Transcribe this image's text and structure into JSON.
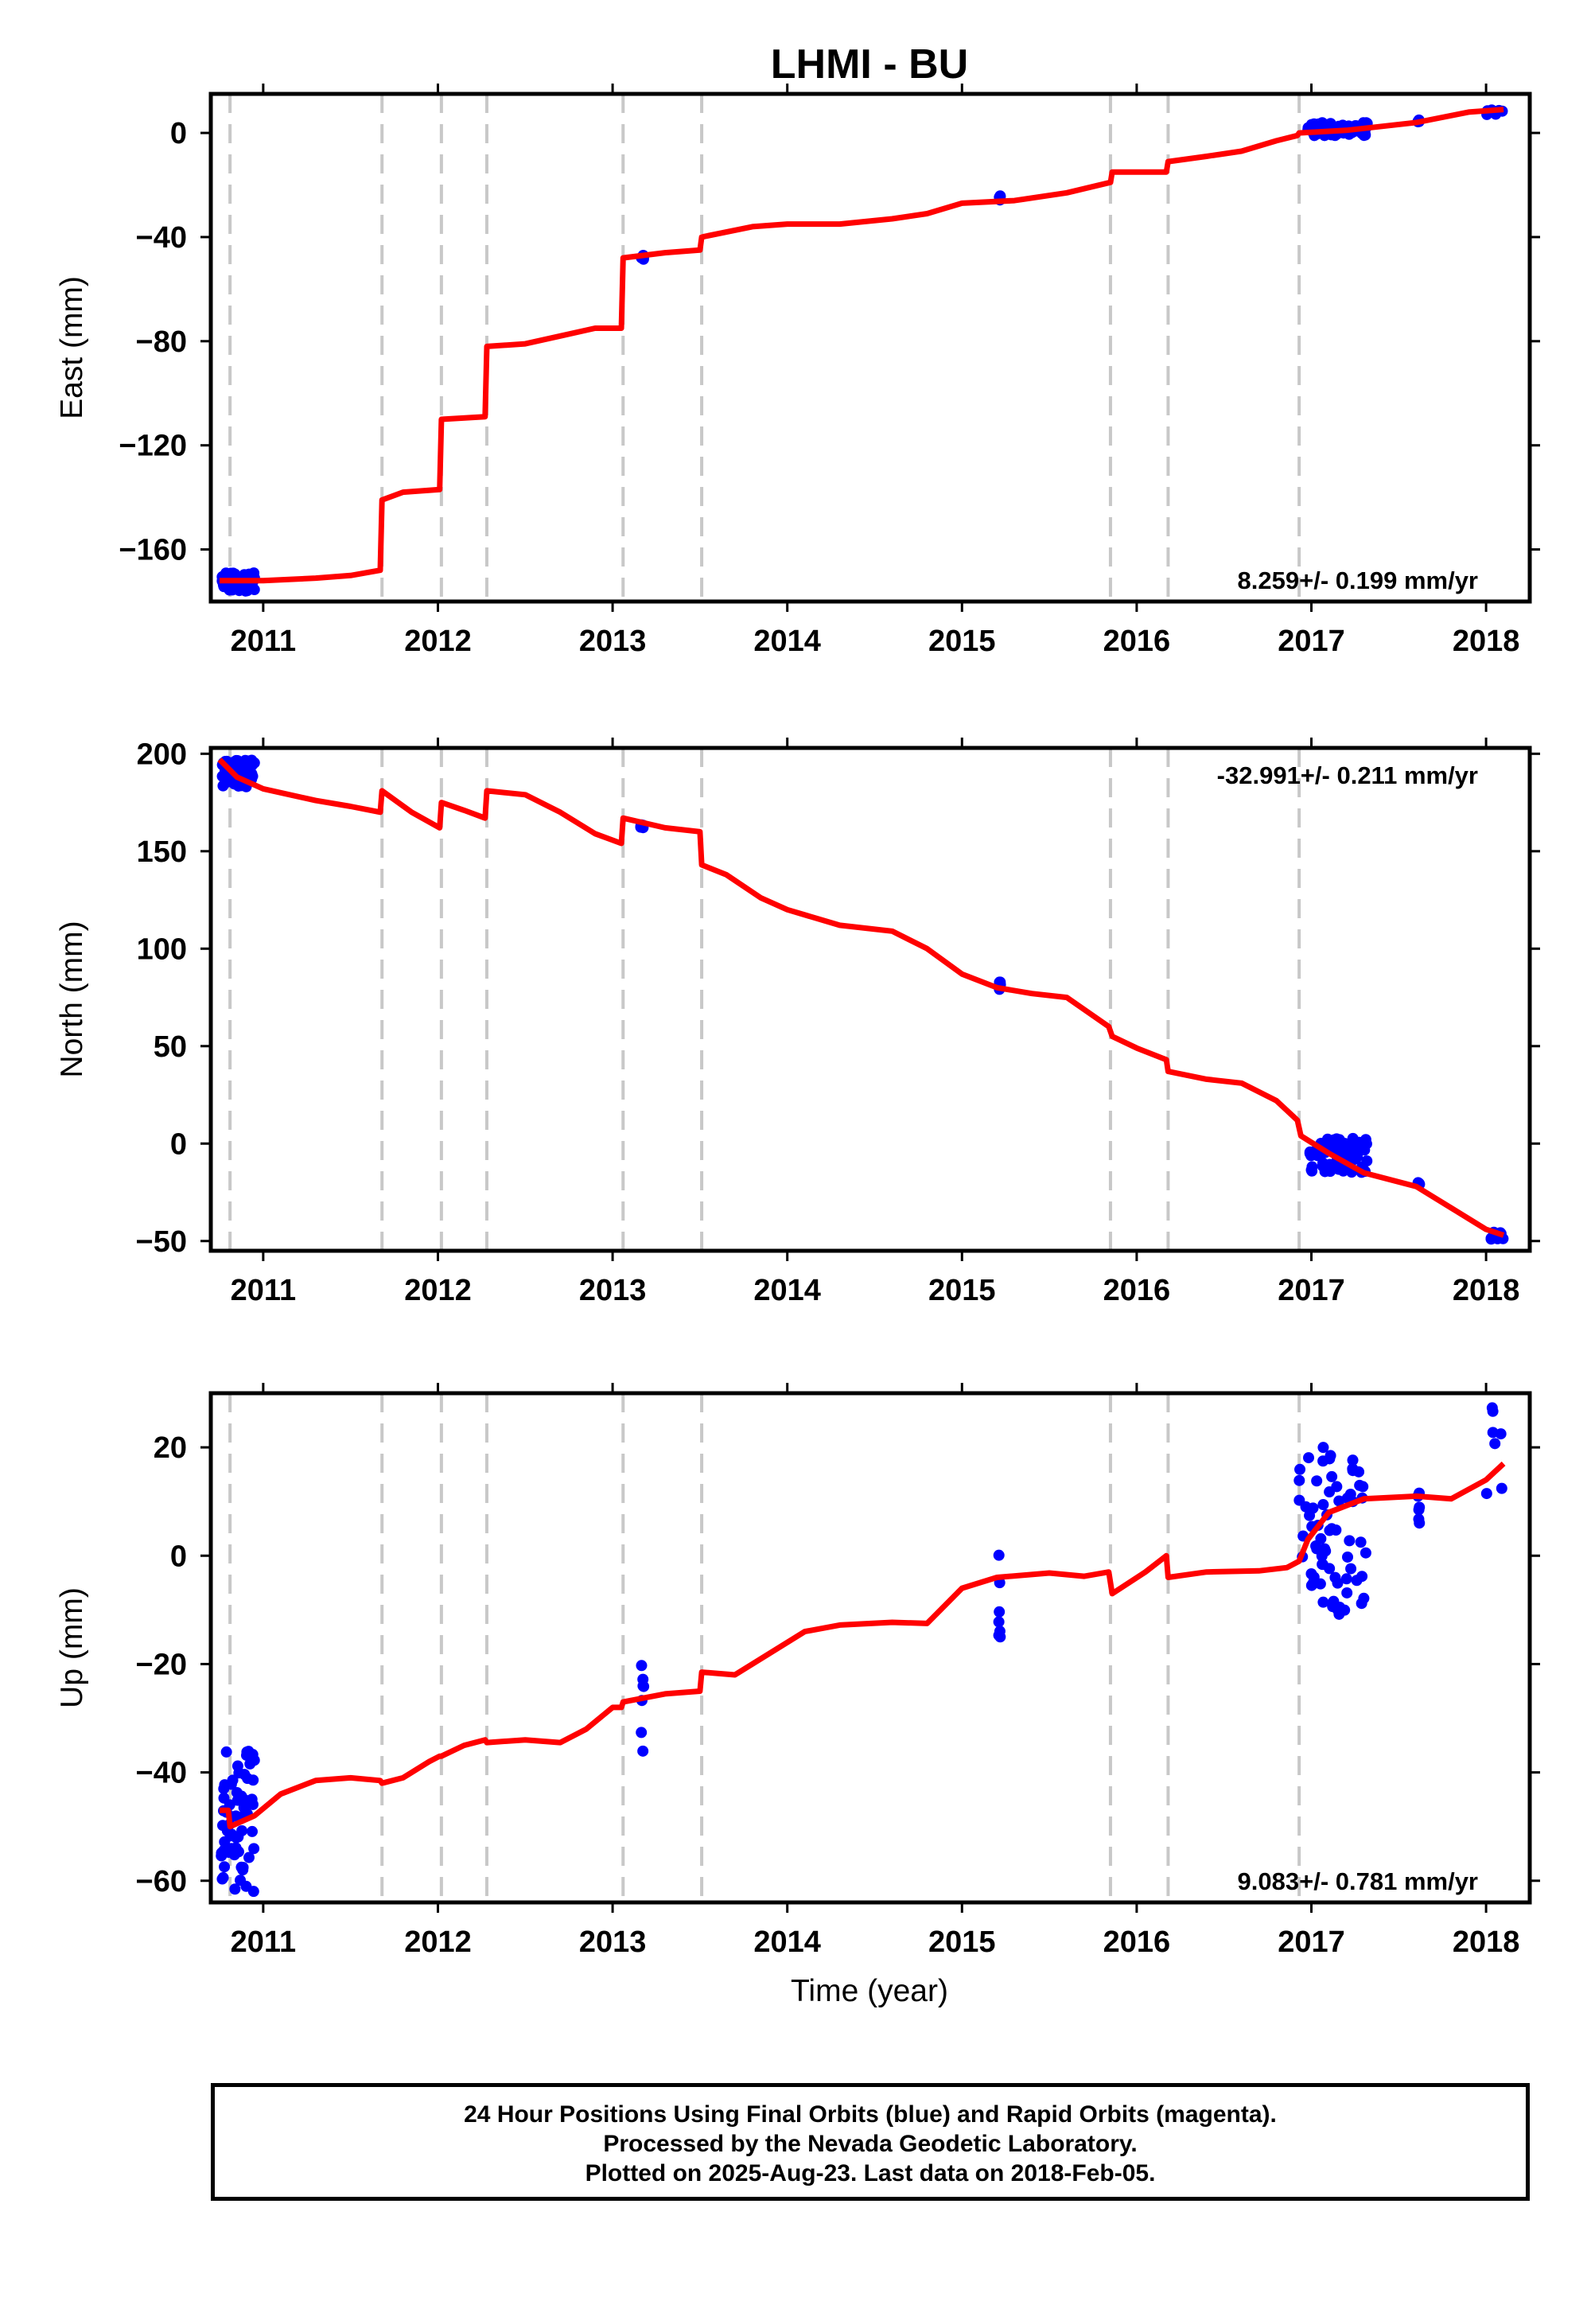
{
  "title": "LHMI - BU",
  "xlabel": "Time (year)",
  "colors": {
    "final": "#0000ff",
    "model": "#ff0000",
    "breaks": "#c8c8c8"
  },
  "footer": {
    "line1": "24 Hour Positions Using Final Orbits (blue) and Rapid Orbits (magenta).",
    "line2": "Processed by the Nevada Geodetic Laboratory.",
    "line3": "Plotted on 2025-Aug-23. Last data on 2018-Feb-05."
  },
  "chart_data": [
    {
      "type": "scatter",
      "component": "east",
      "ylabel": "East (mm)",
      "rate": "8.259+/- 0.199 mm/yr",
      "rate_position": "bottom-right",
      "xlim": [
        2010.7,
        2018.25
      ],
      "ylim": [
        -180,
        15
      ],
      "xticks": [
        2011,
        2012,
        2013,
        2014,
        2015,
        2016,
        2017,
        2018
      ],
      "yticks": [
        0,
        -40,
        -80,
        -120,
        -160
      ],
      "breaks": [
        2010.81,
        2011.68,
        2012.02,
        2012.28,
        2013.06,
        2013.51,
        2015.85,
        2016.18,
        2016.93
      ],
      "model_line": [
        [
          2010.75,
          -172
        ],
        [
          2011.0,
          -172
        ],
        [
          2011.3,
          -171
        ],
        [
          2011.5,
          -170
        ],
        [
          2011.67,
          -168
        ],
        [
          2011.68,
          -141
        ],
        [
          2011.8,
          -138
        ],
        [
          2012.01,
          -137
        ],
        [
          2012.02,
          -110
        ],
        [
          2012.27,
          -109
        ],
        [
          2012.28,
          -82
        ],
        [
          2012.5,
          -81
        ],
        [
          2012.7,
          -78
        ],
        [
          2012.9,
          -75
        ],
        [
          2013.05,
          -75
        ],
        [
          2013.06,
          -48
        ],
        [
          2013.3,
          -46
        ],
        [
          2013.5,
          -45
        ],
        [
          2013.51,
          -40
        ],
        [
          2013.8,
          -36
        ],
        [
          2014.0,
          -35
        ],
        [
          2014.3,
          -35
        ],
        [
          2014.6,
          -33
        ],
        [
          2014.8,
          -31
        ],
        [
          2015.0,
          -27
        ],
        [
          2015.3,
          -26
        ],
        [
          2015.6,
          -23
        ],
        [
          2015.85,
          -19
        ],
        [
          2015.86,
          -15
        ],
        [
          2016.17,
          -15
        ],
        [
          2016.18,
          -11
        ],
        [
          2016.4,
          -9
        ],
        [
          2016.6,
          -7
        ],
        [
          2016.8,
          -3
        ],
        [
          2016.92,
          -1
        ],
        [
          2016.93,
          0
        ],
        [
          2017.2,
          1
        ],
        [
          2017.6,
          4
        ],
        [
          2017.9,
          8
        ],
        [
          2018.1,
          9
        ]
      ],
      "observations": [
        {
          "period": [
            2010.76,
            2010.95
          ],
          "y": [
            -176,
            -169
          ]
        },
        {
          "period": [
            2013.16,
            2013.18
          ],
          "y": [
            -49,
            -45
          ]
        },
        {
          "period": [
            2015.21,
            2015.22
          ],
          "y": [
            -27,
            -24
          ]
        },
        {
          "period": [
            2016.98,
            2017.32
          ],
          "y": [
            -1,
            4
          ]
        },
        {
          "period": [
            2017.61,
            2017.62
          ],
          "y": [
            4,
            5
          ]
        },
        {
          "period": [
            2018.0,
            2018.1
          ],
          "y": [
            7,
            11
          ]
        }
      ]
    },
    {
      "type": "scatter",
      "component": "north",
      "ylabel": "North (mm)",
      "rate": "-32.991+/- 0.211 mm/yr",
      "rate_position": "top-right",
      "xlim": [
        2010.7,
        2018.25
      ],
      "ylim": [
        -55,
        203
      ],
      "xticks": [
        2011,
        2012,
        2013,
        2014,
        2015,
        2016,
        2017,
        2018
      ],
      "yticks": [
        200,
        150,
        100,
        50,
        0,
        -50
      ],
      "breaks": [
        2010.81,
        2011.68,
        2012.02,
        2012.28,
        2013.06,
        2013.51,
        2015.85,
        2016.18,
        2016.93
      ],
      "model_line": [
        [
          2010.75,
          197
        ],
        [
          2010.85,
          188
        ],
        [
          2011.0,
          182
        ],
        [
          2011.3,
          176
        ],
        [
          2011.5,
          173
        ],
        [
          2011.67,
          170
        ],
        [
          2011.68,
          181
        ],
        [
          2011.85,
          170
        ],
        [
          2012.01,
          162
        ],
        [
          2012.02,
          175
        ],
        [
          2012.15,
          171
        ],
        [
          2012.27,
          167
        ],
        [
          2012.28,
          181
        ],
        [
          2012.5,
          179
        ],
        [
          2012.7,
          170
        ],
        [
          2012.9,
          159
        ],
        [
          2013.05,
          154
        ],
        [
          2013.06,
          167
        ],
        [
          2013.3,
          162
        ],
        [
          2013.5,
          160
        ],
        [
          2013.51,
          143
        ],
        [
          2013.65,
          138
        ],
        [
          2013.85,
          126
        ],
        [
          2014.0,
          120
        ],
        [
          2014.3,
          112
        ],
        [
          2014.6,
          109
        ],
        [
          2014.8,
          100
        ],
        [
          2015.0,
          87
        ],
        [
          2015.2,
          80
        ],
        [
          2015.4,
          77
        ],
        [
          2015.6,
          75
        ],
        [
          2015.84,
          60
        ],
        [
          2015.86,
          55
        ],
        [
          2016.0,
          49
        ],
        [
          2016.17,
          43
        ],
        [
          2016.18,
          37
        ],
        [
          2016.4,
          33
        ],
        [
          2016.6,
          31
        ],
        [
          2016.8,
          22
        ],
        [
          2016.92,
          12
        ],
        [
          2016.94,
          4
        ],
        [
          2017.1,
          -5
        ],
        [
          2017.3,
          -15
        ],
        [
          2017.6,
          -22
        ],
        [
          2017.8,
          -33
        ],
        [
          2018.0,
          -44
        ],
        [
          2018.1,
          -47
        ]
      ],
      "observations": [
        {
          "period": [
            2010.76,
            2010.95
          ],
          "y": [
            183,
            197
          ]
        },
        {
          "period": [
            2013.16,
            2013.18
          ],
          "y": [
            161,
            165
          ]
        },
        {
          "period": [
            2015.21,
            2015.22
          ],
          "y": [
            78,
            83
          ]
        },
        {
          "period": [
            2016.98,
            2017.32
          ],
          "y": [
            -15,
            3
          ]
        },
        {
          "period": [
            2017.61,
            2017.62
          ],
          "y": [
            -21,
            -20
          ]
        },
        {
          "period": [
            2018.0,
            2018.1
          ],
          "y": [
            -49,
            -45
          ]
        }
      ]
    },
    {
      "type": "scatter",
      "component": "up",
      "ylabel": "Up (mm)",
      "rate": "9.083+/- 0.781 mm/yr",
      "rate_position": "bottom-right",
      "xlim": [
        2010.7,
        2018.25
      ],
      "ylim": [
        -64,
        30
      ],
      "xticks": [
        2011,
        2012,
        2013,
        2014,
        2015,
        2016,
        2017,
        2018
      ],
      "yticks": [
        20,
        0,
        -20,
        -40,
        -60
      ],
      "breaks": [
        2010.81,
        2011.68,
        2012.02,
        2012.28,
        2013.06,
        2013.51,
        2015.85,
        2016.18,
        2016.93
      ],
      "model_line": [
        [
          2010.75,
          -47
        ],
        [
          2010.8,
          -47
        ],
        [
          2010.81,
          -50
        ],
        [
          2010.95,
          -48
        ],
        [
          2011.1,
          -44
        ],
        [
          2011.3,
          -41.5
        ],
        [
          2011.5,
          -41
        ],
        [
          2011.67,
          -41.5
        ],
        [
          2011.68,
          -42
        ],
        [
          2011.8,
          -41
        ],
        [
          2011.95,
          -38
        ],
        [
          2012.01,
          -37
        ],
        [
          2012.02,
          -37
        ],
        [
          2012.15,
          -35
        ],
        [
          2012.27,
          -34
        ],
        [
          2012.28,
          -34.5
        ],
        [
          2012.5,
          -34
        ],
        [
          2012.7,
          -34.5
        ],
        [
          2012.85,
          -32
        ],
        [
          2013.0,
          -28
        ],
        [
          2013.05,
          -28
        ],
        [
          2013.06,
          -27
        ],
        [
          2013.3,
          -25.5
        ],
        [
          2013.5,
          -25
        ],
        [
          2013.51,
          -21.5
        ],
        [
          2013.7,
          -22
        ],
        [
          2013.85,
          -19
        ],
        [
          2014.1,
          -14
        ],
        [
          2014.3,
          -12.8
        ],
        [
          2014.6,
          -12.3
        ],
        [
          2014.8,
          -12.5
        ],
        [
          2015.0,
          -6
        ],
        [
          2015.2,
          -4
        ],
        [
          2015.5,
          -3.2
        ],
        [
          2015.7,
          -3.8
        ],
        [
          2015.84,
          -3
        ],
        [
          2015.86,
          -7
        ],
        [
          2016.05,
          -3
        ],
        [
          2016.17,
          0
        ],
        [
          2016.18,
          -4
        ],
        [
          2016.4,
          -3
        ],
        [
          2016.7,
          -2.8
        ],
        [
          2016.86,
          -2.2
        ],
        [
          2016.93,
          -1
        ],
        [
          2016.98,
          3
        ],
        [
          2017.1,
          8
        ],
        [
          2017.3,
          10.5
        ],
        [
          2017.6,
          11
        ],
        [
          2017.8,
          10.5
        ],
        [
          2018.0,
          14
        ],
        [
          2018.1,
          17
        ]
      ],
      "observations": [
        {
          "period": [
            2010.76,
            2010.95
          ],
          "y": [
            -62,
            -36
          ]
        },
        {
          "period": [
            2013.16,
            2013.18
          ],
          "y": [
            -37,
            -20
          ]
        },
        {
          "period": [
            2015.21,
            2015.22
          ],
          "y": [
            -15,
            1
          ]
        },
        {
          "period": [
            2016.93,
            2017.32
          ],
          "y": [
            -11,
            20
          ]
        },
        {
          "period": [
            2017.61,
            2017.62
          ],
          "y": [
            5,
            12
          ]
        },
        {
          "period": [
            2018.0,
            2018.1
          ],
          "y": [
            8,
            28
          ]
        }
      ]
    }
  ]
}
